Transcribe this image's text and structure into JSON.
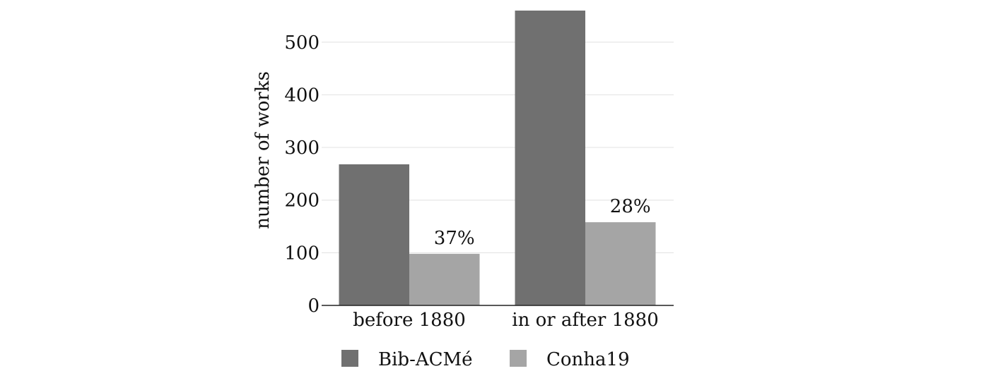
{
  "chart_data": {
    "type": "bar",
    "categories": [
      "before 1880",
      "in or after 1880"
    ],
    "series": [
      {
        "name": "Bib-ACMé",
        "color": "#707070",
        "values": [
          268,
          560
        ]
      },
      {
        "name": "Conha19",
        "color": "#a5a5a5",
        "values": [
          98,
          158
        ]
      }
    ],
    "data_labels": [
      {
        "series": 1,
        "category": 0,
        "text": "37%"
      },
      {
        "series": 1,
        "category": 1,
        "text": "28%"
      }
    ],
    "title": "",
    "xlabel": "",
    "ylabel": "number of works",
    "ylim": [
      0,
      560
    ],
    "yticks": [
      0,
      100,
      200,
      300,
      400,
      500
    ],
    "grid": true,
    "legend_position": "bottom"
  }
}
